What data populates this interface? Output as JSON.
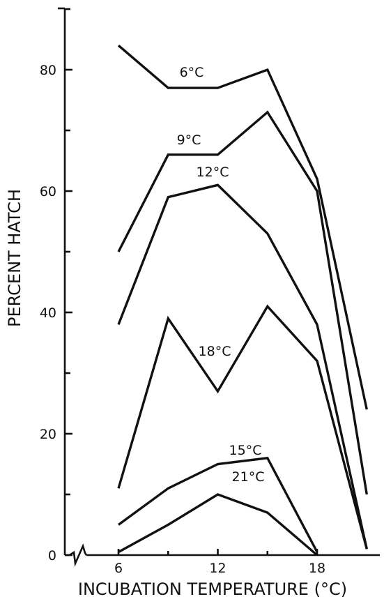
{
  "chart_data": {
    "type": "line",
    "xlabel": "INCUBATION TEMPERATURE (°C)",
    "ylabel": "PERCENT HATCH",
    "xlim": [
      3,
      21.5
    ],
    "ylim": [
      0,
      92
    ],
    "x_ticks": [
      {
        "value": 6,
        "label": "6"
      },
      {
        "value": 12,
        "label": "12"
      },
      {
        "value": 18,
        "label": "18"
      }
    ],
    "y_ticks": [
      {
        "value": 0,
        "label": "0"
      },
      {
        "value": 20,
        "label": "20"
      },
      {
        "value": 40,
        "label": "40"
      },
      {
        "value": 60,
        "label": "60"
      },
      {
        "value": 80,
        "label": "80"
      }
    ],
    "y_minor_ticks": [
      10,
      30,
      50,
      70,
      90
    ],
    "axis_break": true,
    "grid": false,
    "series": [
      {
        "name": "6°C",
        "x": [
          6,
          9,
          12,
          15,
          18,
          21
        ],
        "values": [
          84,
          77,
          77,
          80,
          62,
          24
        ]
      },
      {
        "name": "9°C",
        "x": [
          6,
          9,
          12,
          15,
          18,
          21
        ],
        "values": [
          50,
          66,
          66,
          73,
          60,
          10
        ]
      },
      {
        "name": "12°C",
        "x": [
          6,
          9,
          12,
          15,
          18,
          21
        ],
        "values": [
          38,
          59,
          61,
          53,
          38,
          1
        ]
      },
      {
        "name": "18°C",
        "x": [
          6,
          9,
          12,
          15,
          18,
          21
        ],
        "values": [
          11,
          39,
          27,
          41,
          32,
          1
        ]
      },
      {
        "name": "15°C",
        "x": [
          6,
          9,
          12,
          15,
          18
        ],
        "values": [
          5,
          11,
          15,
          16,
          0.5
        ]
      },
      {
        "name": "21°C",
        "x": [
          6,
          9,
          12,
          15,
          18
        ],
        "values": [
          0.5,
          5,
          10,
          7,
          0
        ]
      }
    ]
  }
}
